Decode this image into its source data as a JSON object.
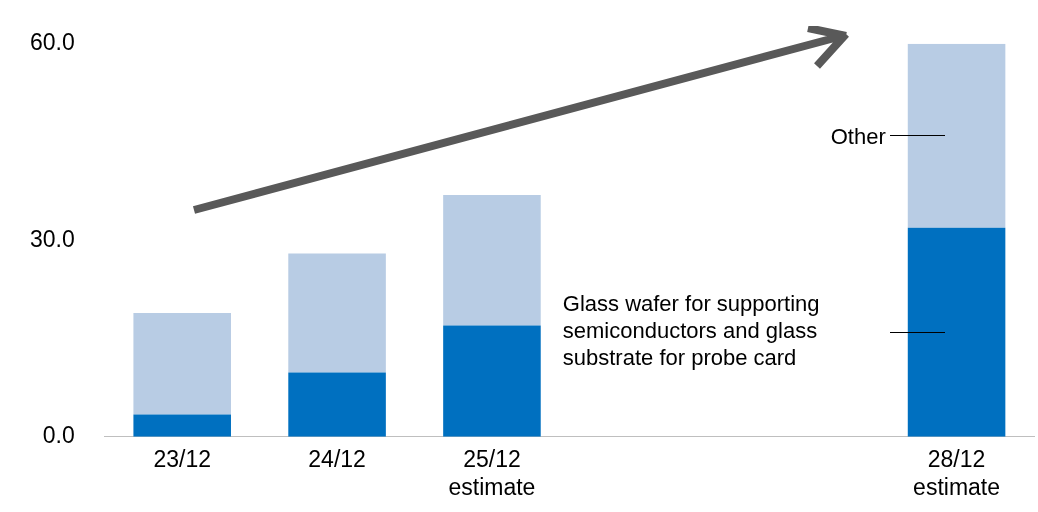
{
  "chart_data": {
    "type": "bar",
    "stacked": true,
    "categories": [
      "23/12",
      "24/12",
      "25/12 estimate",
      null,
      null,
      "28/12 estimate"
    ],
    "series": [
      {
        "name": "Glass wafer for supporting semiconductors and glass substrate for probe card",
        "color": "#0070c0",
        "values": [
          3.4,
          9.8,
          17.0,
          null,
          null,
          31.9
        ]
      },
      {
        "name": "Other",
        "color": "#b8cce4",
        "values": [
          15.5,
          18.2,
          19.9,
          null,
          null,
          28.1
        ]
      }
    ],
    "ylim": [
      0,
      60
    ],
    "yticks": [
      {
        "value": 0,
        "label": "0.0"
      },
      {
        "value": 30,
        "label": "30.0"
      },
      {
        "value": 60,
        "label": "60.0"
      }
    ],
    "grid": false,
    "legend": false
  }
}
